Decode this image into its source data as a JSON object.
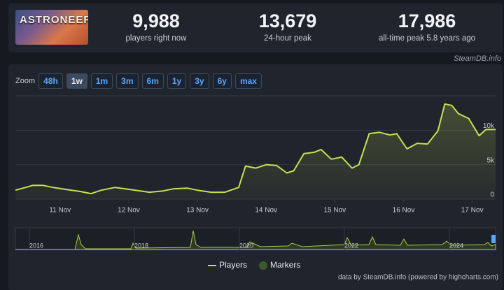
{
  "header": {
    "game_logo": "ASTRONEER",
    "stats": [
      {
        "value": "9,988",
        "label": "players right now"
      },
      {
        "value": "13,679",
        "label": "24-hour peak"
      },
      {
        "value": "17,986",
        "label": "all-time peak 5.8 years ago"
      }
    ],
    "watermark": "SteamDB.info"
  },
  "zoom": {
    "label": "Zoom",
    "buttons": [
      "48h",
      "1w",
      "1m",
      "3m",
      "6m",
      "1y",
      "3y",
      "6y",
      "max"
    ],
    "active": "1w"
  },
  "chart_data": {
    "type": "line",
    "x": [
      10.35,
      10.5,
      10.6,
      10.75,
      10.9,
      11.1,
      11.3,
      11.45,
      11.6,
      11.8,
      11.95,
      12.1,
      12.3,
      12.5,
      12.65,
      12.85,
      13.0,
      13.2,
      13.4,
      13.6,
      13.7,
      13.85,
      14.0,
      14.15,
      14.3,
      14.4,
      14.55,
      14.7,
      14.8,
      14.95,
      15.1,
      15.25,
      15.35,
      15.5,
      15.65,
      15.8,
      15.9,
      16.05,
      16.2,
      16.35,
      16.5,
      16.6,
      16.7,
      16.8,
      16.95,
      17.1,
      17.2,
      17.34
    ],
    "series": [
      {
        "name": "Players",
        "color": "#c2e34f",
        "values": [
          1300,
          1700,
          2000,
          2000,
          1700,
          1400,
          1100,
          800,
          1300,
          1700,
          1500,
          1300,
          1000,
          1200,
          1500,
          1600,
          1300,
          1000,
          1000,
          1700,
          4800,
          4500,
          5000,
          4900,
          3800,
          4100,
          6600,
          6800,
          7200,
          5800,
          6100,
          4500,
          5000,
          9500,
          9700,
          9300,
          9500,
          7300,
          8100,
          8000,
          9900,
          13800,
          13600,
          12400,
          11700,
          9200,
          10100,
          10100
        ]
      }
    ],
    "markers": {
      "name": "Markers",
      "color": "#3e5a2c"
    },
    "xlim": [
      10.35,
      17.34
    ],
    "xticks": [
      {
        "value": 11,
        "label": "11 Nov"
      },
      {
        "value": 12,
        "label": "12 Nov"
      },
      {
        "value": 13,
        "label": "13 Nov"
      },
      {
        "value": 14,
        "label": "14 Nov"
      },
      {
        "value": 15,
        "label": "15 Nov"
      },
      {
        "value": 16,
        "label": "16 Nov"
      },
      {
        "value": 17,
        "label": "17 Nov"
      }
    ],
    "ylim": [
      0,
      15000
    ],
    "yticks": [
      0,
      {
        "value": 5000,
        "label": "5k"
      },
      {
        "value": 10000,
        "label": "10k"
      }
    ],
    "grid": true
  },
  "navigator": {
    "labels": [
      "2016",
      "2018",
      "2020",
      "2022",
      "2024"
    ]
  },
  "footer": "data by SteamDB.info (powered by highcharts.com)"
}
